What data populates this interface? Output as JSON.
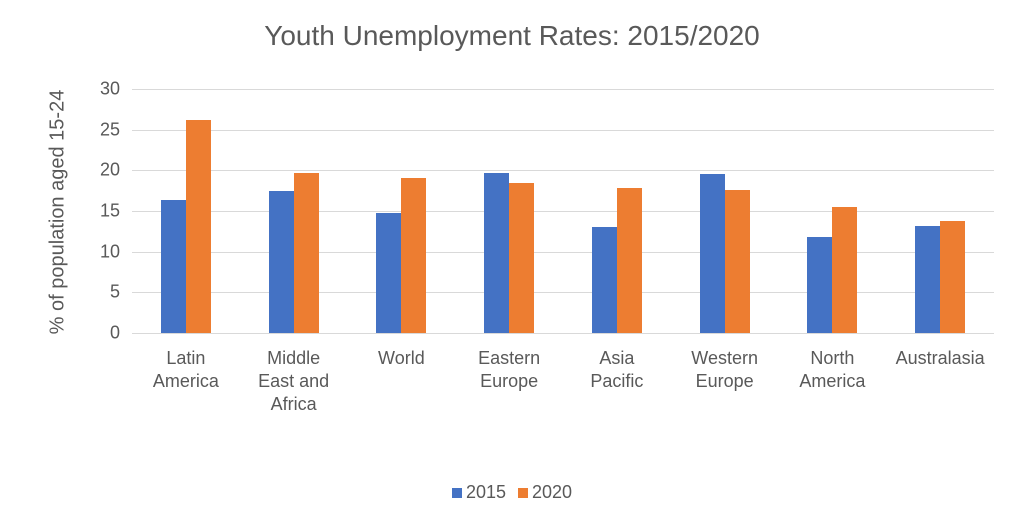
{
  "chart_data": {
    "type": "bar",
    "title": "Youth Unemployment Rates: 2015/2020",
    "xlabel": "",
    "ylabel": "% of population aged 15-24",
    "ylim": [
      0,
      30
    ],
    "yticks": [
      0,
      5,
      10,
      15,
      20,
      25,
      30
    ],
    "grid": true,
    "legend_position": "bottom",
    "categories": [
      "Latin\nAmerica",
      "Middle\nEast and\nAfrica",
      "World",
      "Eastern\nEurope",
      "Asia\nPacific",
      "Western\nEurope",
      "North\nAmerica",
      "Australasia"
    ],
    "series": [
      {
        "name": "2015",
        "color": "#4472c4",
        "values": [
          16.4,
          17.5,
          14.8,
          19.7,
          13.0,
          19.5,
          11.8,
          13.2
        ]
      },
      {
        "name": "2020",
        "color": "#ed7d31",
        "values": [
          26.2,
          19.7,
          19.1,
          18.5,
          17.8,
          17.6,
          15.5,
          13.8
        ]
      }
    ]
  }
}
